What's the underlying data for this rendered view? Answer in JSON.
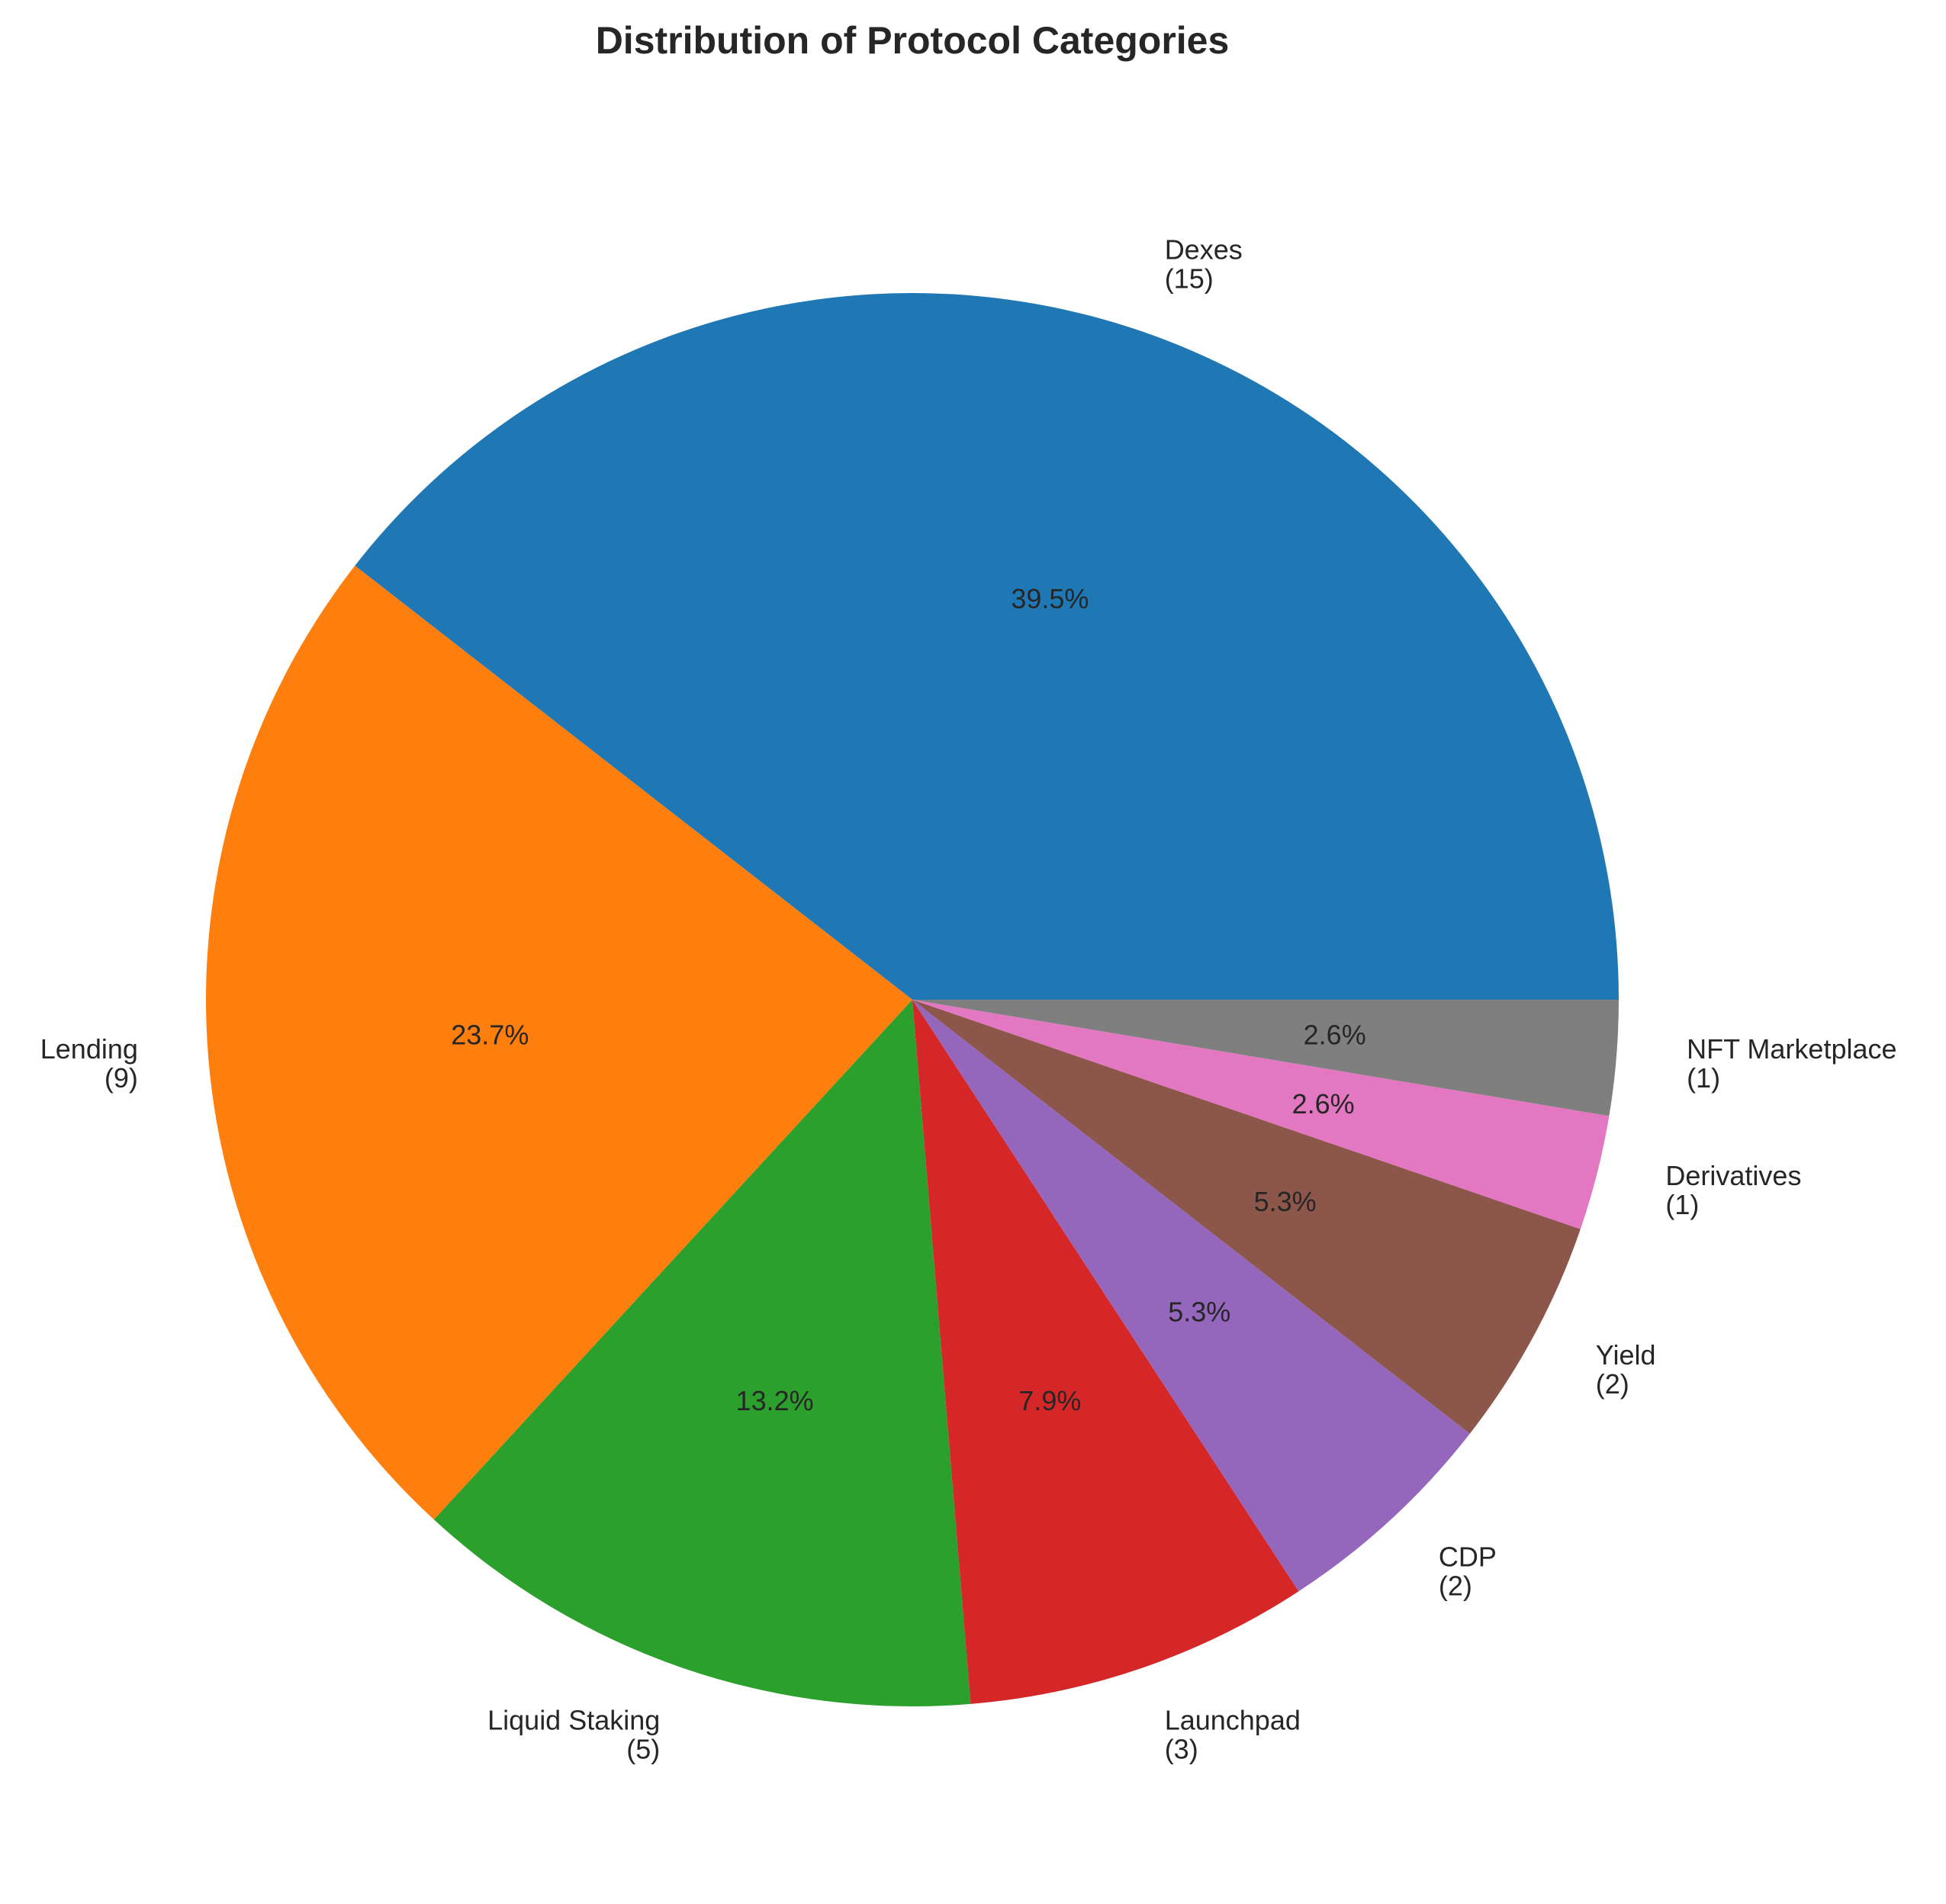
{
  "chart_data": {
    "type": "pie",
    "title": "Distribution of Protocol Categories",
    "start_angle": "0deg (3 o'clock), clockwise",
    "slices": [
      {
        "label": "Dexes",
        "count": 15,
        "count_label": "(15)",
        "percent": 39.5,
        "percent_label": "39.5%",
        "color": "#1f77b4"
      },
      {
        "label": "Lending",
        "count": 9,
        "count_label": "(9)",
        "percent": 23.7,
        "percent_label": "23.7%",
        "color": "#ff7f0e"
      },
      {
        "label": "Liquid Staking",
        "count": 5,
        "count_label": "(5)",
        "percent": 13.2,
        "percent_label": "13.2%",
        "color": "#2ca02c"
      },
      {
        "label": "Launchpad",
        "count": 3,
        "count_label": "(3)",
        "percent": 7.9,
        "percent_label": "7.9%",
        "color": "#d62728"
      },
      {
        "label": "CDP",
        "count": 2,
        "count_label": "(2)",
        "percent": 5.3,
        "percent_label": "5.3%",
        "color": "#9467bd"
      },
      {
        "label": "Yield",
        "count": 2,
        "count_label": "(2)",
        "percent": 5.3,
        "percent_label": "5.3%",
        "color": "#8c564b"
      },
      {
        "label": "Derivatives",
        "count": 1,
        "count_label": "(1)",
        "percent": 2.6,
        "percent_label": "2.6%",
        "color": "#e377c2"
      },
      {
        "label": "NFT Marketplace",
        "count": 1,
        "count_label": "(1)",
        "percent": 2.6,
        "percent_label": "2.6%",
        "color": "#7f7f7f"
      }
    ]
  }
}
